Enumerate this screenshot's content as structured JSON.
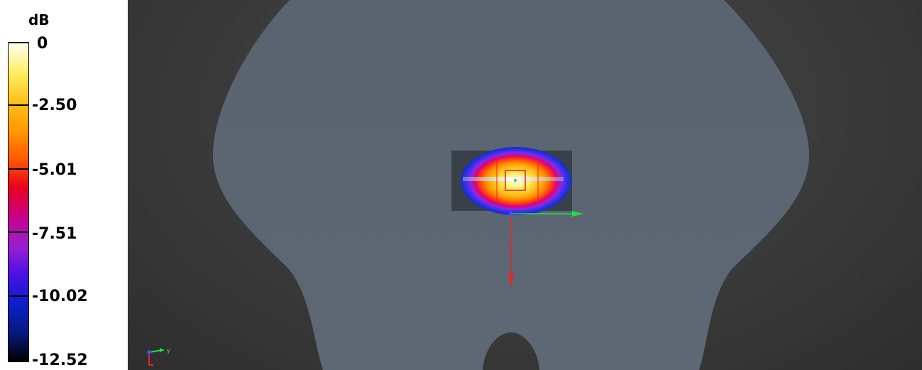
{
  "legend": {
    "unit": "dB",
    "ticks": [
      {
        "label": "0"
      },
      {
        "label": "-2.50"
      },
      {
        "label": "-5.01"
      },
      {
        "label": "-7.51"
      },
      {
        "label": "-10.02"
      },
      {
        "label": "-12.52"
      }
    ],
    "gradient_colors": [
      "#fffff0",
      "#ffee66",
      "#ffc21a",
      "#ff9a00",
      "#ff5a00",
      "#e8001f",
      "#c8008a",
      "#9b1fd0",
      "#4a10e6",
      "#0a20c8",
      "#061a80",
      "#000000"
    ]
  },
  "viewport": {
    "phantom_color": "#5c6570",
    "background_color": "#3a3a3a",
    "axis_labels": {
      "y": "y"
    },
    "colors": {
      "x_axis": "#e22828",
      "y_axis": "#22dd44",
      "z_axis": "#3355ff",
      "measurement_box": "#e8202a"
    }
  }
}
